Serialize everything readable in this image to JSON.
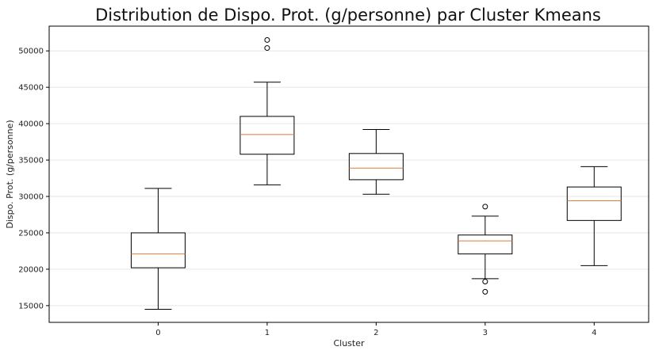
{
  "chart_data": {
    "type": "box",
    "title": "Distribution de Dispo. Prot. (g/personne) par Cluster Kmeans",
    "xlabel": "Cluster",
    "ylabel": "Dispo. Prot. (g/personne)",
    "ylim": [
      12700,
      53400
    ],
    "yticks": [
      15000,
      20000,
      25000,
      30000,
      35000,
      40000,
      45000,
      50000
    ],
    "ytick_labels": [
      "15000",
      "20000",
      "25000",
      "30000",
      "35000",
      "40000",
      "45000",
      "50000"
    ],
    "grid": "horizontal",
    "categories": [
      "0",
      "1",
      "2",
      "3",
      "4"
    ],
    "boxes": [
      {
        "category": "0",
        "whisker_low": 14500,
        "q1": 20200,
        "median": 22100,
        "q3": 25000,
        "whisker_high": 31100,
        "outliers": []
      },
      {
        "category": "1",
        "whisker_low": 31600,
        "q1": 35800,
        "median": 38500,
        "q3": 41000,
        "whisker_high": 45700,
        "outliers": [
          50400,
          51500
        ]
      },
      {
        "category": "2",
        "whisker_low": 30300,
        "q1": 32300,
        "median": 33900,
        "q3": 35900,
        "whisker_high": 39200,
        "outliers": []
      },
      {
        "category": "3",
        "whisker_low": 18700,
        "q1": 22100,
        "median": 23900,
        "q3": 24700,
        "whisker_high": 27300,
        "outliers": [
          16900,
          18300,
          28600
        ]
      },
      {
        "category": "4",
        "whisker_low": 20500,
        "q1": 26700,
        "median": 29400,
        "q3": 31300,
        "whisker_high": 34100,
        "outliers": []
      }
    ],
    "colors": {
      "box": "#000000",
      "median": "#e07b39",
      "grid": "#e6e6e6",
      "frame": "#000000"
    }
  }
}
